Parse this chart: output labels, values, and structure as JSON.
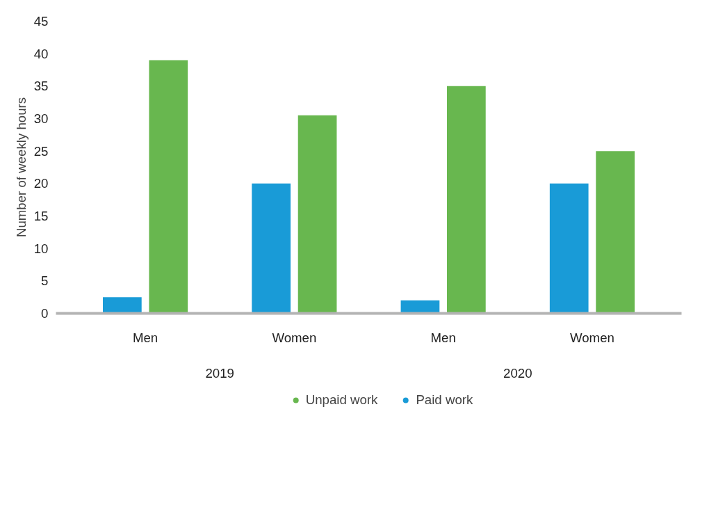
{
  "chart_data": {
    "type": "bar",
    "ylabel": "Number of weekly hours",
    "categories": [
      "Men",
      "Women",
      "Men",
      "Women"
    ],
    "series": [
      {
        "name": "Unpaid work",
        "color": "#68b74f",
        "values": [
          39,
          30.5,
          35,
          25
        ]
      },
      {
        "name": "Paid work",
        "color": "#199bd7",
        "values": [
          2.5,
          20,
          2,
          20
        ]
      }
    ],
    "annotations": [
      "2019",
      "2020"
    ],
    "ylim": [
      0,
      45
    ],
    "yticks": [
      0,
      5,
      10,
      15,
      20,
      25,
      30,
      35,
      40,
      45
    ],
    "grid": false,
    "legend": "bottom"
  }
}
